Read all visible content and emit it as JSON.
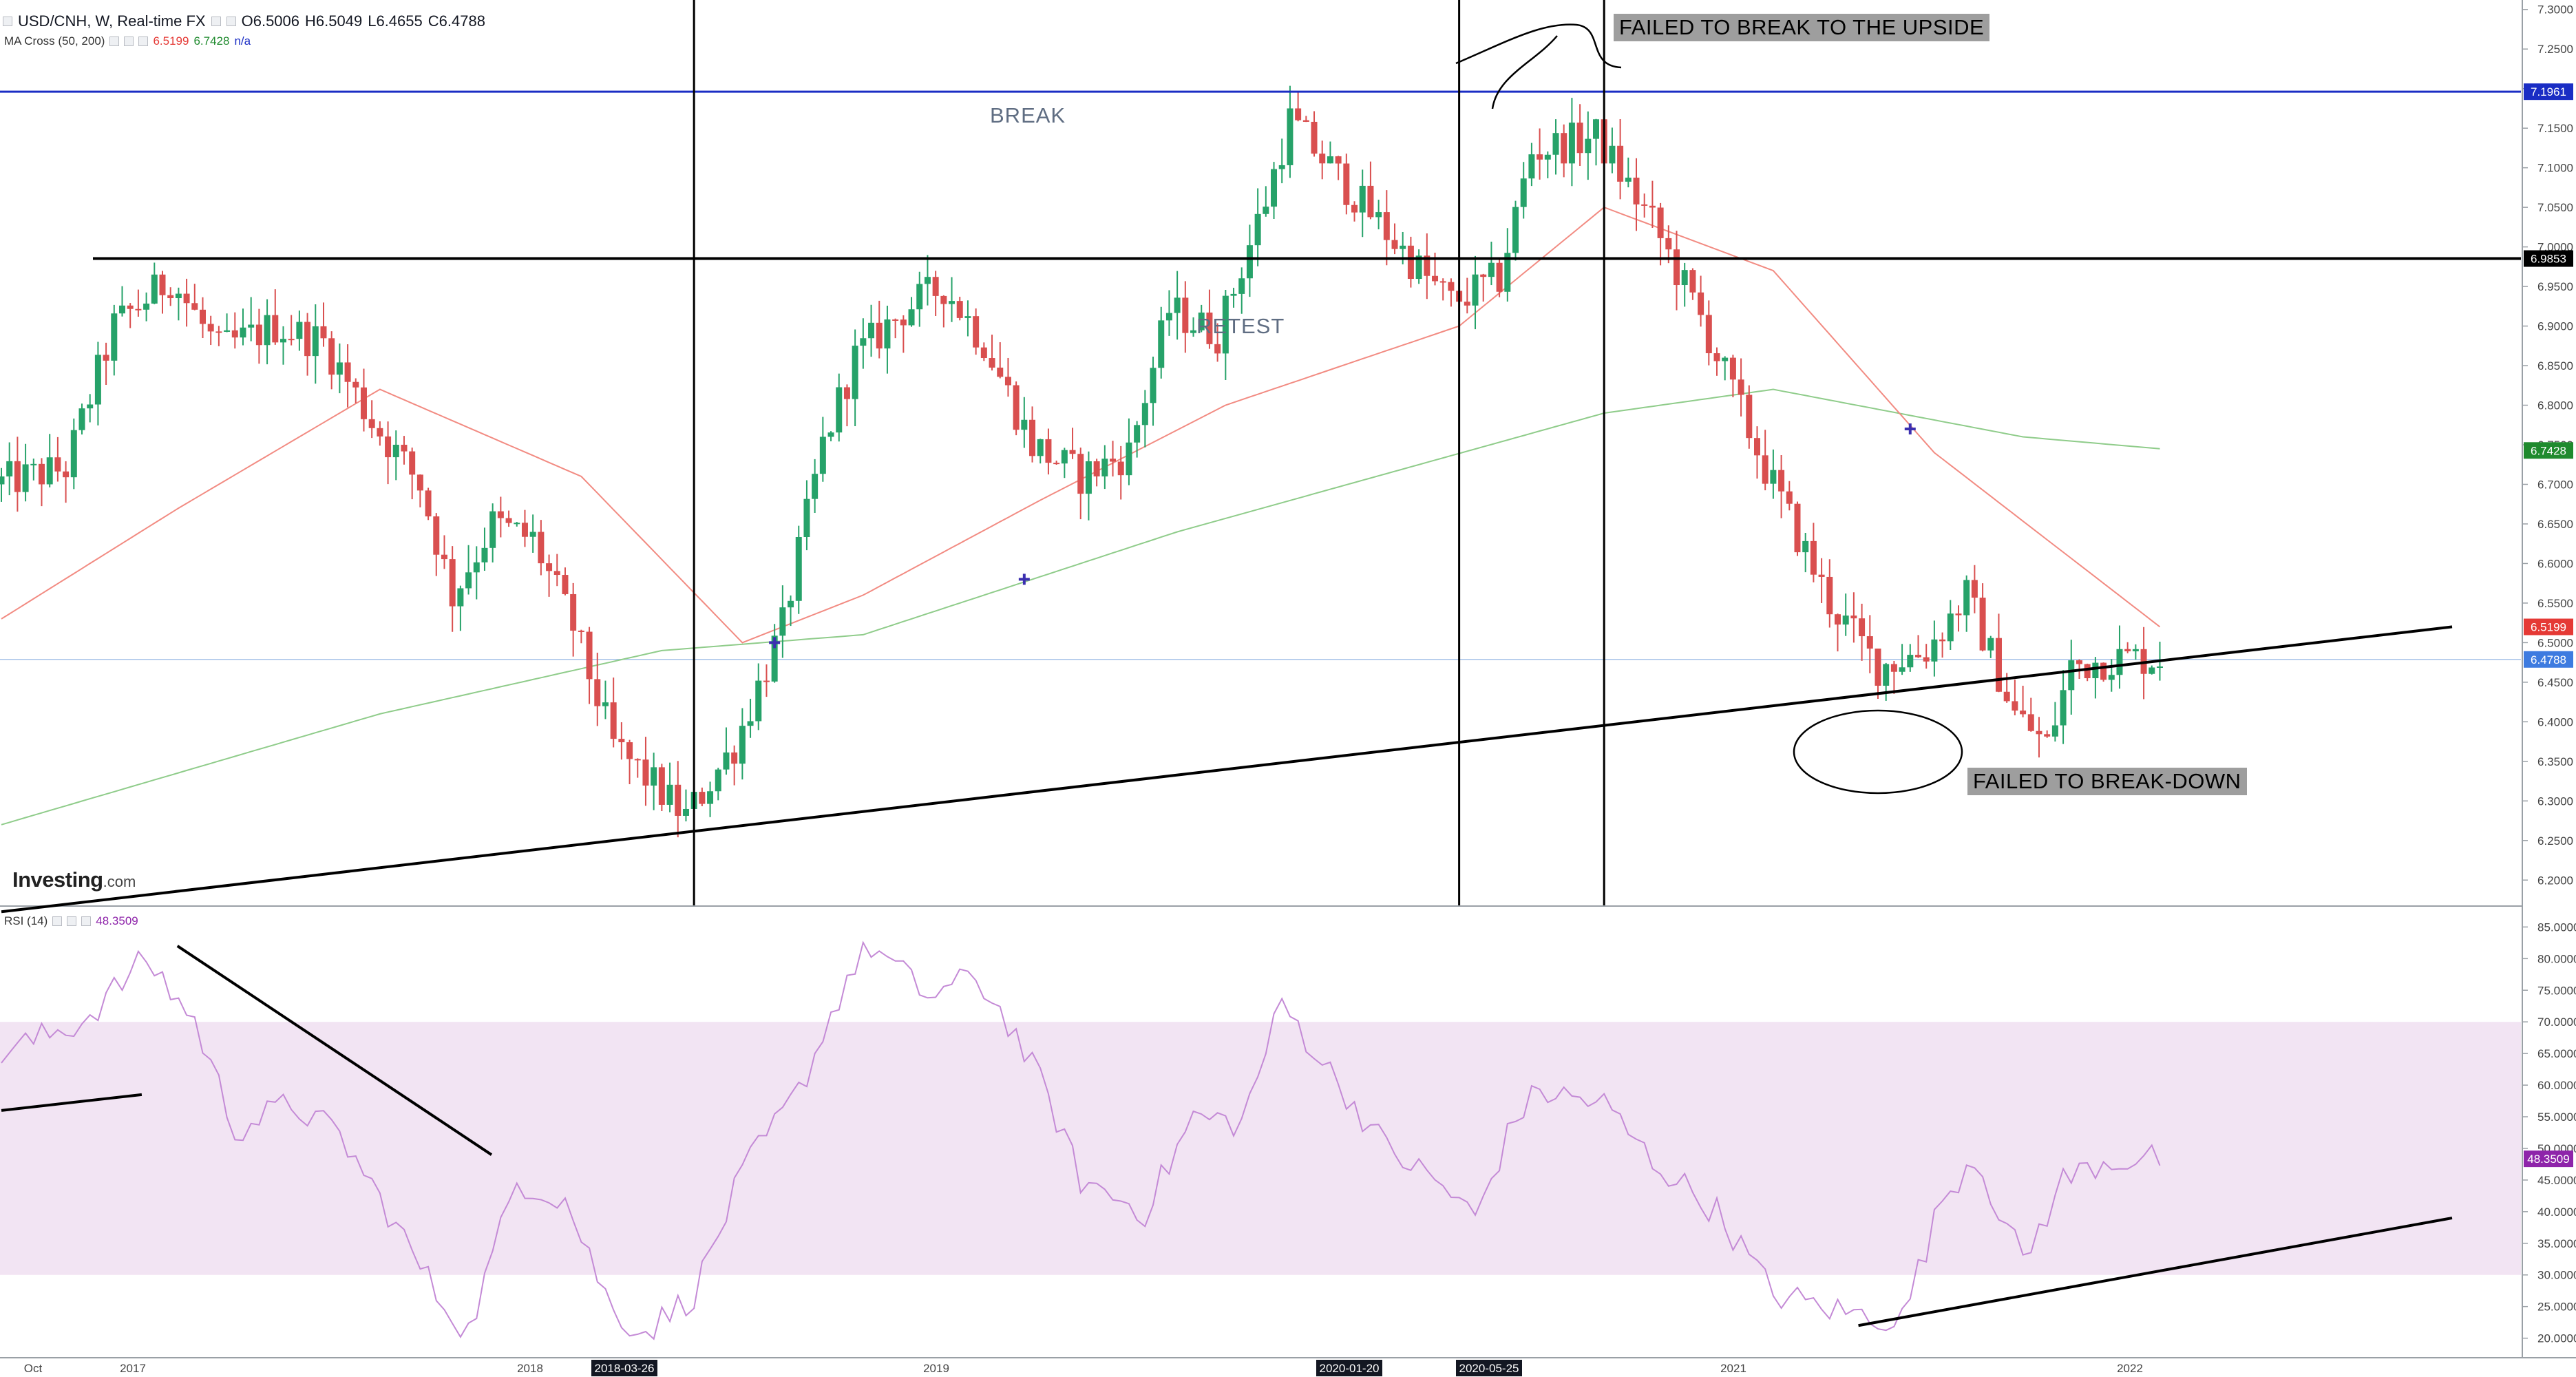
{
  "header": {
    "symbol": "USD/CNH, W, Real-time FX",
    "open_label": "O",
    "open": "6.5006",
    "high_label": "H",
    "high": "6.5049",
    "low_label": "L",
    "low": "6.4655",
    "close_label": "C",
    "close": "6.4788"
  },
  "ma_indicator": {
    "label": "MA Cross (50, 200)",
    "v1": "6.5199",
    "v2": "6.7428",
    "v3": "n/a"
  },
  "rsi_indicator": {
    "label": "RSI (14)",
    "value": "48.3509"
  },
  "logo": {
    "brand": "Investing",
    "suffix": ".com"
  },
  "annotations": {
    "failed_upside": "FAILED TO BREAK TO THE UPSIDE",
    "break": "BREAK",
    "retest": "RETEST",
    "failed_breakdown": "FAILED TO BREAK-DOWN"
  },
  "colors": {
    "up": "#26a269",
    "down": "#d94f4f",
    "ma_fast": "#f28b82",
    "ma_slow": "#8fcc8a",
    "rsi": "#c48ad6",
    "rsi_band": "#f2e4f3",
    "level_line": "#1a2dc4"
  },
  "chart_data": [
    {
      "type": "candlestick",
      "title": "USD/CNH, W, Real-time FX",
      "y_range": [
        6.175,
        7.305
      ],
      "y_ticks": [
        "7.3000",
        "7.2500",
        "7.2000",
        "7.1500",
        "7.1000",
        "7.0500",
        "7.0000",
        "6.9500",
        "6.9000",
        "6.8500",
        "6.8000",
        "6.7500",
        "6.7000",
        "6.6500",
        "6.6000",
        "6.5500",
        "6.5000",
        "6.4500",
        "6.4000",
        "6.3500",
        "6.3000",
        "6.2500",
        "6.2000"
      ],
      "x_ticks": [
        "Oct",
        "2017",
        "2018",
        "2018-03-26",
        "2019",
        "2020-01-20",
        "2020-05-25",
        "2021",
        "2022"
      ],
      "price_labels": [
        {
          "text": "7.1961",
          "value": 7.1961,
          "color": "#1a2dc4"
        },
        {
          "text": "6.9853",
          "value": 6.9853,
          "color": "#000000"
        },
        {
          "text": "6.7428",
          "value": 6.7428,
          "color": "#1f8a2e"
        },
        {
          "text": "6.5199",
          "value": 6.5199,
          "color": "#e53935"
        },
        {
          "text": "6.4788",
          "value": 6.4788,
          "color": "#3d7be0"
        }
      ],
      "horizontal_levels": [
        7.1961,
        6.9853
      ],
      "trendline": {
        "from": [
          "2016-08",
          6.16
        ],
        "to": [
          "2022-06",
          6.52
        ]
      },
      "anchors": [
        [
          "2016-08-01",
          6.7
        ],
        [
          "2016-10-03",
          6.72
        ],
        [
          "2016-11-14",
          6.9
        ],
        [
          "2017-01-02",
          6.96
        ],
        [
          "2017-02-13",
          6.87
        ],
        [
          "2017-04-03",
          6.9
        ],
        [
          "2017-05-15",
          6.88
        ],
        [
          "2017-06-26",
          6.78
        ],
        [
          "2017-08-07",
          6.7
        ],
        [
          "2017-09-04",
          6.56
        ],
        [
          "2017-10-09",
          6.65
        ],
        [
          "2017-11-13",
          6.63
        ],
        [
          "2017-12-18",
          6.52
        ],
        [
          "2018-01-22",
          6.37
        ],
        [
          "2018-03-26",
          6.28
        ],
        [
          "2018-05-07",
          6.37
        ],
        [
          "2018-06-18",
          6.52
        ],
        [
          "2018-07-23",
          6.75
        ],
        [
          "2018-08-20",
          6.86
        ],
        [
          "2018-10-01",
          6.92
        ],
        [
          "2018-11-05",
          6.95
        ],
        [
          "2018-12-10",
          6.88
        ],
        [
          "2019-01-21",
          6.75
        ],
        [
          "2019-03-04",
          6.71
        ],
        [
          "2019-04-15",
          6.74
        ],
        [
          "2019-05-20",
          6.92
        ],
        [
          "2019-07-01",
          6.89
        ],
        [
          "2019-08-12",
          7.06
        ],
        [
          "2019-09-02",
          7.16
        ],
        [
          "2019-10-07",
          7.1
        ],
        [
          "2019-11-18",
          7.03
        ],
        [
          "2019-12-30",
          6.96
        ],
        [
          "2020-01-20",
          6.93
        ],
        [
          "2020-03-02",
          6.96
        ],
        [
          "2020-03-30",
          7.12
        ],
        [
          "2020-05-25",
          7.14
        ],
        [
          "2020-07-13",
          7.03
        ],
        [
          "2020-08-24",
          6.91
        ],
        [
          "2020-10-19",
          6.72
        ],
        [
          "2020-12-14",
          6.55
        ],
        [
          "2021-01-25",
          6.47
        ],
        [
          "2021-03-08",
          6.49
        ],
        [
          "2021-04-12",
          6.56
        ],
        [
          "2021-05-24",
          6.41
        ],
        [
          "2021-06-21",
          6.37
        ],
        [
          "2021-07-12",
          6.47
        ],
        [
          "2021-08-16",
          6.48
        ],
        [
          "2021-09-20",
          6.48
        ]
      ],
      "ma_50": [
        [
          "2016-08-01",
          6.53
        ],
        [
          "2017-01-02",
          6.67
        ],
        [
          "2017-06-26",
          6.82
        ],
        [
          "2017-12-18",
          6.71
        ],
        [
          "2018-05-07",
          6.5
        ],
        [
          "2018-08-20",
          6.56
        ],
        [
          "2019-01-21",
          6.68
        ],
        [
          "2019-07-01",
          6.8
        ],
        [
          "2020-01-20",
          6.9
        ],
        [
          "2020-05-25",
          7.05
        ],
        [
          "2020-10-19",
          6.97
        ],
        [
          "2021-03-08",
          6.74
        ],
        [
          "2021-09-20",
          6.52
        ]
      ],
      "ma_200": [
        [
          "2016-08-01",
          6.27
        ],
        [
          "2017-06-26",
          6.41
        ],
        [
          "2018-02-26",
          6.49
        ],
        [
          "2018-08-20",
          6.51
        ],
        [
          "2019-05-20",
          6.64
        ],
        [
          "2020-05-25",
          6.79
        ],
        [
          "2020-10-19",
          6.82
        ],
        [
          "2021-05-24",
          6.76
        ],
        [
          "2021-09-20",
          6.745
        ]
      ],
      "ma_cross_markers": [
        [
          "2018-06-04",
          6.5
        ],
        [
          "2019-01-07",
          6.58
        ],
        [
          "2021-02-15",
          6.77
        ]
      ]
    },
    {
      "type": "line",
      "title": "RSI (14)",
      "y_range": [
        18,
        87
      ],
      "y_ticks": [
        "85.0000",
        "80.0000",
        "75.0000",
        "70.0000",
        "65.0000",
        "60.0000",
        "55.0000",
        "50.0000",
        "45.0000",
        "40.0000",
        "35.0000",
        "30.0000",
        "25.0000",
        "20.0000"
      ],
      "band": [
        30,
        70
      ],
      "last_value": 48.3509,
      "series": [
        {
          "values": [
            [
              "2016-08-01",
              65
            ],
            [
              "2016-10-10",
              70
            ],
            [
              "2016-12-05",
              80
            ],
            [
              "2017-01-16",
              70
            ],
            [
              "2017-02-20",
              53
            ],
            [
              "2017-04-10",
              57
            ],
            [
              "2017-05-22",
              52
            ],
            [
              "2017-07-03",
              40
            ],
            [
              "2017-08-14",
              27
            ],
            [
              "2017-09-11",
              21
            ],
            [
              "2017-10-23",
              45
            ],
            [
              "2017-12-04",
              42
            ],
            [
              "2018-01-15",
              24
            ],
            [
              "2018-02-12",
              21
            ],
            [
              "2018-03-26",
              27
            ],
            [
              "2018-05-07",
              46
            ],
            [
              "2018-06-25",
              59
            ],
            [
              "2018-08-06",
              77
            ],
            [
              "2018-08-27",
              82
            ],
            [
              "2018-10-15",
              74
            ],
            [
              "2018-11-26",
              77
            ],
            [
              "2018-12-24",
              70
            ],
            [
              "2019-01-28",
              58
            ],
            [
              "2019-02-25",
              45
            ],
            [
              "2019-04-22",
              40
            ],
            [
              "2019-06-03",
              55
            ],
            [
              "2019-07-15",
              54
            ],
            [
              "2019-08-19",
              73
            ],
            [
              "2019-09-30",
              62
            ],
            [
              "2019-11-18",
              50
            ],
            [
              "2020-01-06",
              44
            ],
            [
              "2020-02-03",
              39
            ],
            [
              "2020-03-09",
              55
            ],
            [
              "2020-03-30",
              59
            ],
            [
              "2020-05-25",
              57
            ],
            [
              "2020-07-06",
              48
            ],
            [
              "2020-08-31",
              40
            ],
            [
              "2020-10-19",
              27
            ],
            [
              "2020-12-21",
              24
            ],
            [
              "2021-02-08",
              23
            ],
            [
              "2021-03-15",
              42
            ],
            [
              "2021-04-12",
              49
            ],
            [
              "2021-05-24",
              32
            ],
            [
              "2021-06-28",
              45
            ],
            [
              "2021-08-02",
              48
            ],
            [
              "2021-09-20",
              48.35
            ]
          ]
        }
      ],
      "trendlines": [
        {
          "from": [
            "2016-08",
            56
          ],
          "to": [
            "2016-12",
            58.5
          ]
        },
        {
          "from": [
            "2017-01",
            82
          ],
          "to": [
            "2017-10",
            49
          ]
        },
        {
          "from": [
            "2021-01",
            22
          ],
          "to": [
            "2022-06",
            39
          ]
        }
      ]
    }
  ]
}
